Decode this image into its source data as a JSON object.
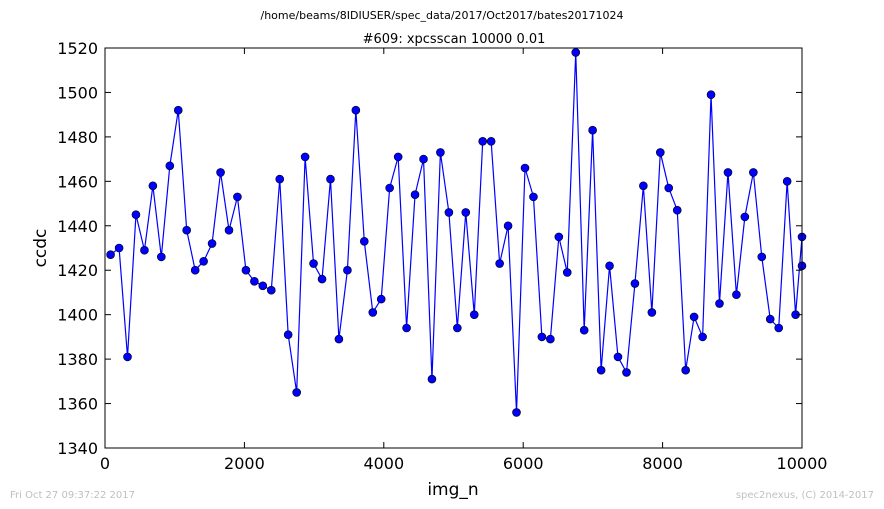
{
  "figure": {
    "suptitle": "/home/beams/8IDIUSER/spec_data/2017/Oct2017/bates20171024",
    "footer_left": "Fri Oct 27 09:37:22 2017",
    "footer_right": "spec2nexus, (C) 2014-2017"
  },
  "colors": {
    "series": "#0000ff",
    "axes": "#000000",
    "footer": "#bfbfbf"
  },
  "chart_data": {
    "type": "line",
    "title": "#609: xpcsscan 10000 0.01",
    "xlabel": "img_n",
    "ylabel": "ccdc",
    "xlim": [
      0,
      10000
    ],
    "ylim": [
      1340,
      1520
    ],
    "grid": false,
    "marker": "circle",
    "xticks": [
      "0",
      "2000",
      "4000",
      "6000",
      "8000",
      "10000"
    ],
    "yticks": [
      "1340",
      "1360",
      "1380",
      "1400",
      "1420",
      "1440",
      "1460",
      "1480",
      "1500",
      "1520"
    ],
    "x": [
      80,
      202,
      323,
      444,
      566,
      687,
      808,
      930,
      1051,
      1172,
      1294,
      1415,
      1536,
      1658,
      1779,
      1900,
      2022,
      2143,
      2264,
      2386,
      2507,
      2628,
      2750,
      2871,
      2992,
      3114,
      3235,
      3356,
      3478,
      3599,
      3720,
      3842,
      3963,
      4084,
      4206,
      4327,
      4448,
      4570,
      4691,
      4812,
      4934,
      5055,
      5176,
      5298,
      5419,
      5540,
      5662,
      5783,
      5904,
      6026,
      6147,
      6268,
      6390,
      6511,
      6632,
      6754,
      6875,
      6996,
      7118,
      7239,
      7360,
      7482,
      7603,
      7724,
      7846,
      7967,
      8088,
      8210,
      8331,
      8452,
      8574,
      8695,
      8816,
      8938,
      9059,
      9180,
      9302,
      9423,
      9544,
      9666,
      9787,
      9908,
      10000,
      10000
    ],
    "series": [
      {
        "values": [
          1427,
          1430,
          1381,
          1445,
          1429,
          1458,
          1426,
          1467,
          1492,
          1438,
          1420,
          1424,
          1432,
          1464,
          1438,
          1453,
          1420,
          1415,
          1413,
          1411,
          1461,
          1391,
          1365,
          1471,
          1423,
          1416,
          1461,
          1389,
          1420,
          1492,
          1433,
          1401,
          1407,
          1457,
          1471,
          1394,
          1454,
          1470,
          1371,
          1473,
          1446,
          1394,
          1446,
          1400,
          1478,
          1478,
          1423,
          1440,
          1356,
          1466,
          1453,
          1390,
          1389,
          1435,
          1419,
          1518,
          1393,
          1483,
          1375,
          1422,
          1381,
          1374,
          1414,
          1458,
          1401,
          1473,
          1457,
          1447,
          1375,
          1399,
          1390,
          1499,
          1405,
          1464,
          1409,
          1444,
          1464,
          1426,
          1398,
          1394,
          1460,
          1400,
          1435,
          1422
        ]
      }
    ]
  }
}
